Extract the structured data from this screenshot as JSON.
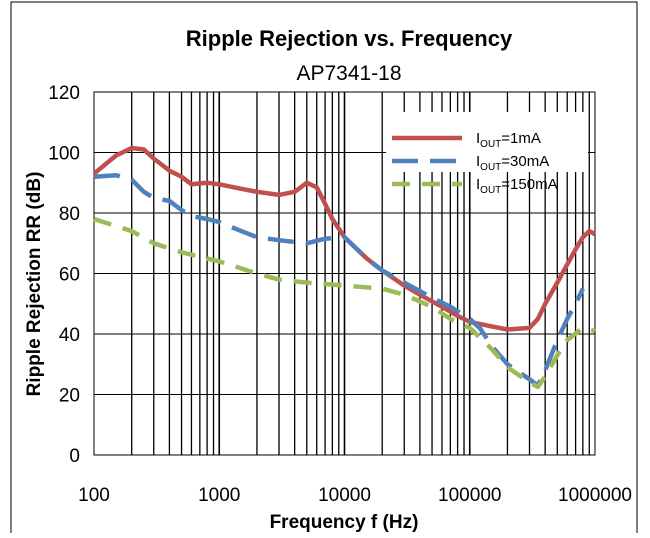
{
  "chart_data": {
    "type": "line",
    "title": "Ripple Rejection vs. Frequency",
    "subtitle": "AP7341-18",
    "xlabel": "Frequency f (Hz)",
    "ylabel": "Ripple Rejection RR (dB)",
    "xscale": "log",
    "xlim": [
      100,
      1000000
    ],
    "ylim": [
      0,
      120
    ],
    "x_ticks": [
      100,
      1000,
      10000,
      100000,
      1000000
    ],
    "x_tick_labels": [
      "100",
      "1000",
      "10000",
      "100000",
      "1000000"
    ],
    "y_ticks": [
      0,
      20,
      40,
      60,
      80,
      100,
      120
    ],
    "y_tick_labels": [
      "0",
      "20",
      "40",
      "60",
      "80",
      "100",
      "120"
    ],
    "grid": true,
    "legend_position": "top-right",
    "series": [
      {
        "name_prefix": "I",
        "name_sub": "OUT",
        "name_suffix": "=1mA",
        "color": "#C0504D",
        "dash": "solid",
        "points": [
          [
            100,
            93
          ],
          [
            150,
            99
          ],
          [
            200,
            101.5
          ],
          [
            250,
            101
          ],
          [
            300,
            98
          ],
          [
            400,
            94
          ],
          [
            500,
            92
          ],
          [
            600,
            89.5
          ],
          [
            800,
            90
          ],
          [
            1000,
            89.5
          ],
          [
            1500,
            88
          ],
          [
            2000,
            87
          ],
          [
            3000,
            86
          ],
          [
            4000,
            87
          ],
          [
            5000,
            90
          ],
          [
            6000,
            88.5
          ],
          [
            7000,
            83
          ],
          [
            8000,
            78
          ],
          [
            10000,
            72
          ],
          [
            15000,
            65
          ],
          [
            20000,
            61
          ],
          [
            30000,
            56
          ],
          [
            40000,
            53
          ],
          [
            60000,
            49
          ],
          [
            80000,
            46
          ],
          [
            100000,
            44
          ],
          [
            150000,
            42.5
          ],
          [
            200000,
            41.5
          ],
          [
            300000,
            42
          ],
          [
            350000,
            45
          ],
          [
            400000,
            50
          ],
          [
            500000,
            57
          ],
          [
            600000,
            63
          ],
          [
            700000,
            68
          ],
          [
            800000,
            72
          ],
          [
            900000,
            74
          ],
          [
            1000000,
            73
          ]
        ]
      },
      {
        "name_prefix": "I",
        "name_sub": "OUT",
        "name_suffix": "=30mA",
        "color": "#4F81BD",
        "dash": "long-dash",
        "points": [
          [
            100,
            92
          ],
          [
            150,
            92.5
          ],
          [
            200,
            91
          ],
          [
            250,
            87
          ],
          [
            300,
            85
          ],
          [
            400,
            84
          ],
          [
            500,
            81
          ],
          [
            600,
            79
          ],
          [
            800,
            78
          ],
          [
            1000,
            77
          ],
          [
            1500,
            74
          ],
          [
            2000,
            72
          ],
          [
            3000,
            71
          ],
          [
            5000,
            70
          ],
          [
            7000,
            71.5
          ],
          [
            10000,
            72
          ],
          [
            15000,
            65
          ],
          [
            20000,
            61
          ],
          [
            30000,
            57
          ],
          [
            50000,
            52
          ],
          [
            70000,
            49
          ],
          [
            100000,
            45
          ],
          [
            120000,
            42
          ],
          [
            150000,
            36
          ],
          [
            200000,
            30
          ],
          [
            300000,
            25
          ],
          [
            350000,
            23
          ],
          [
            400000,
            28
          ],
          [
            500000,
            38
          ],
          [
            600000,
            45
          ],
          [
            700000,
            50
          ],
          [
            800000,
            55
          ]
        ]
      },
      {
        "name_prefix": "I",
        "name_sub": "OUT",
        "name_suffix": "=150mA",
        "color": "#9BBB59",
        "dash": "medium-dash",
        "points": [
          [
            100,
            78
          ],
          [
            200,
            74
          ],
          [
            300,
            70
          ],
          [
            500,
            67
          ],
          [
            1000,
            64
          ],
          [
            2000,
            60
          ],
          [
            3000,
            58
          ],
          [
            5000,
            57
          ],
          [
            10000,
            56
          ],
          [
            20000,
            55
          ],
          [
            30000,
            53
          ],
          [
            50000,
            49
          ],
          [
            70000,
            45
          ],
          [
            100000,
            42
          ],
          [
            150000,
            35
          ],
          [
            200000,
            29
          ],
          [
            300000,
            24
          ],
          [
            350000,
            22.5
          ],
          [
            400000,
            26
          ],
          [
            500000,
            33
          ],
          [
            600000,
            38
          ],
          [
            800000,
            42
          ],
          [
            1000000,
            41
          ]
        ]
      }
    ]
  }
}
